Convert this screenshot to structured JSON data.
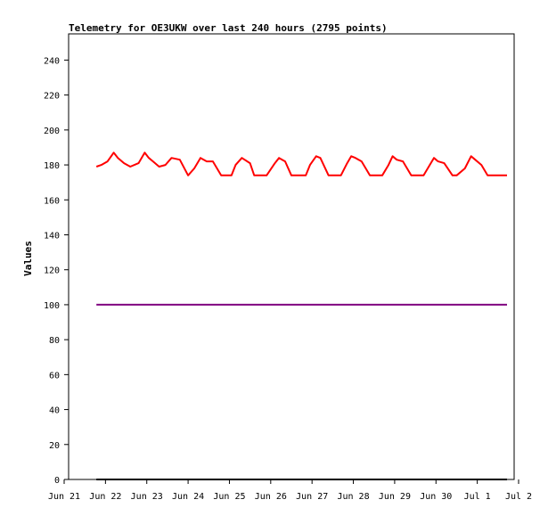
{
  "chart_data": {
    "type": "line",
    "title": "Telemetry for OE3UKW over last 240 hours (2795 points)",
    "xlabel": "",
    "ylabel": "Values",
    "ylim": [
      0,
      255
    ],
    "xlim_days": [
      0,
      11
    ],
    "yticks": [
      0,
      20,
      40,
      60,
      80,
      100,
      120,
      140,
      160,
      180,
      200,
      220,
      240
    ],
    "xticks": [
      {
        "day": 0,
        "label": "Jun 21"
      },
      {
        "day": 1,
        "label": "Jun 22"
      },
      {
        "day": 2,
        "label": "Jun 23"
      },
      {
        "day": 3,
        "label": "Jun 24"
      },
      {
        "day": 4,
        "label": "Jun 25"
      },
      {
        "day": 5,
        "label": "Jun 26"
      },
      {
        "day": 6,
        "label": "Jun 27"
      },
      {
        "day": 7,
        "label": "Jun 28"
      },
      {
        "day": 8,
        "label": "Jun 29"
      },
      {
        "day": 9,
        "label": "Jun 30"
      },
      {
        "day": 10,
        "label": "Jul 1"
      },
      {
        "day": 11,
        "label": "Jul 2"
      }
    ],
    "grid": false,
    "series": [
      {
        "color": "#ff0000",
        "x": [
          0.78,
          0.9,
          1.05,
          1.2,
          1.3,
          1.45,
          1.6,
          1.8,
          1.95,
          2.05,
          2.15,
          2.3,
          2.45,
          2.6,
          2.8,
          3.0,
          3.15,
          3.3,
          3.45,
          3.6,
          3.8,
          3.9,
          4.05,
          4.15,
          4.3,
          4.5,
          4.6,
          4.75,
          4.9,
          5.1,
          5.2,
          5.35,
          5.5,
          5.65,
          5.85,
          5.95,
          6.1,
          6.2,
          6.4,
          6.55,
          6.7,
          6.85,
          6.95,
          7.05,
          7.2,
          7.4,
          7.5,
          7.7,
          7.85,
          7.95,
          8.05,
          8.2,
          8.4,
          8.55,
          8.7,
          8.85,
          8.95,
          9.05,
          9.2,
          9.4,
          9.5,
          9.7,
          9.85,
          9.95,
          10.1,
          10.25,
          10.4,
          10.55,
          10.72
        ],
        "y": [
          179,
          180,
          182,
          187,
          184,
          181,
          179,
          181,
          187,
          184,
          182,
          179,
          180,
          184,
          183,
          174,
          178,
          184,
          182,
          182,
          174,
          174,
          174,
          180,
          184,
          181,
          174,
          174,
          174,
          181,
          184,
          182,
          174,
          174,
          174,
          180,
          185,
          184,
          174,
          174,
          174,
          181,
          185,
          184,
          182,
          174,
          174,
          174,
          180,
          185,
          183,
          182,
          174,
          174,
          174,
          180,
          184,
          182,
          181,
          174,
          174,
          178,
          185,
          183,
          180,
          174,
          174,
          174,
          174
        ]
      },
      {
        "color": "#800080",
        "x": [
          0.78,
          10.72
        ],
        "y": [
          100,
          100
        ]
      },
      {
        "color": "#000000",
        "x": [
          0.78,
          10.72
        ],
        "y": [
          0,
          0
        ]
      }
    ]
  }
}
